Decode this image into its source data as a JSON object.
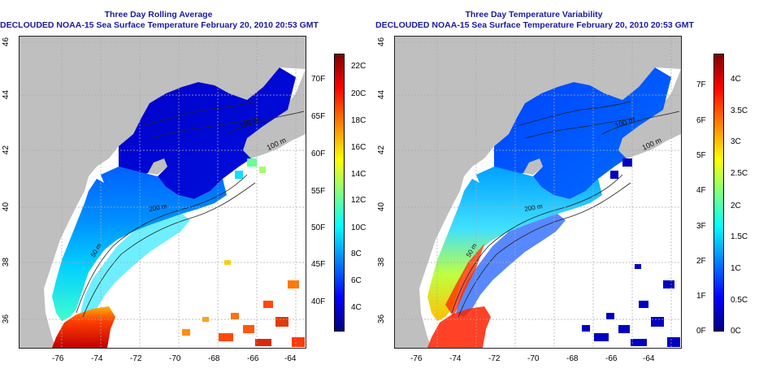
{
  "left_panel": {
    "title_line1": "Three Day Rolling Average",
    "title_line2": "DECLOUDED NOAA-15 Sea Surface Temperature February 20, 2010 20:53 GMT",
    "x_ticks": [
      "-76",
      "-74",
      "-72",
      "-70",
      "-68",
      "-66",
      "-64"
    ],
    "y_ticks": [
      "36",
      "38",
      "40",
      "42",
      "44",
      "46"
    ],
    "contour_labels": [
      "100 m",
      "100 m",
      "200 m",
      "50 m"
    ],
    "colorbar_left_labels": [
      "70F",
      "65F",
      "60F",
      "55F",
      "50F",
      "45F",
      "40F"
    ],
    "colorbar_right_labels": [
      "22C",
      "20C",
      "18C",
      "16C",
      "14C",
      "12C",
      "10C",
      "8C",
      "6C",
      "4C"
    ],
    "colors": [
      "#00007f",
      "#0000ff",
      "#0080ff",
      "#00ffff",
      "#80ff80",
      "#ffff00",
      "#ff8000",
      "#ff0000",
      "#800000"
    ]
  },
  "right_panel": {
    "title_line1": "Three Day Temperature Variability",
    "title_line2": "DECLOUDED NOAA-15 Sea Surface Temperature February 20, 2010 20:53 GMT",
    "x_ticks": [
      "-76",
      "-74",
      "-72",
      "-70",
      "-68",
      "-66",
      "-64"
    ],
    "y_ticks": [
      "36",
      "38",
      "40",
      "42",
      "44",
      "46"
    ],
    "contour_labels": [
      "100 m",
      "100 m",
      "200 m",
      "50 m"
    ],
    "colorbar_left_labels": [
      "7F",
      "6F",
      "5F",
      "4F",
      "3F",
      "2F",
      "1F",
      "0F"
    ],
    "colorbar_right_labels": [
      "4C",
      "3.5C",
      "3C",
      "2.5C",
      "2C",
      "1.5C",
      "1C",
      "0.5C",
      "0C"
    ],
    "colors": [
      "#00007f",
      "#0000ff",
      "#0080ff",
      "#00ffff",
      "#80ff80",
      "#ffff00",
      "#ff8000",
      "#ff0000",
      "#800000"
    ]
  }
}
